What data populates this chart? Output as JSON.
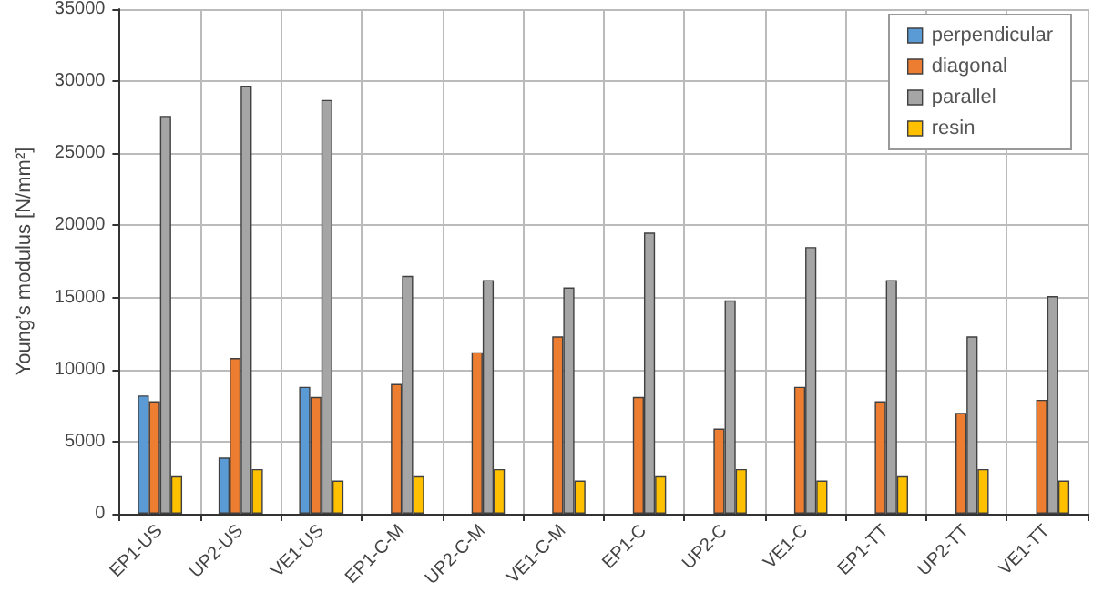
{
  "chart_data": {
    "type": "bar",
    "ylabel": "Young’s modulus [N/mm²]",
    "categories": [
      "EP1-US",
      "UP2-US",
      "VE1-US",
      "EP1-C-M",
      "UP2-C-M",
      "VE1-C-M",
      "EP1-C",
      "UP2-C",
      "VE1-C",
      "EP1-TT",
      "UP2-TT",
      "VE1-TT"
    ],
    "series": [
      {
        "name": "perpendicular",
        "color": "#5b9bd5",
        "values": [
          8200,
          3900,
          8800,
          null,
          null,
          null,
          null,
          null,
          null,
          null,
          null,
          null
        ]
      },
      {
        "name": "diagonal",
        "color": "#ed7d31",
        "values": [
          7800,
          10800,
          8100,
          9000,
          11200,
          12300,
          8100,
          5900,
          8800,
          7800,
          7000,
          7900
        ]
      },
      {
        "name": "parallel",
        "color": "#a5a5a5",
        "values": [
          27600,
          29700,
          28700,
          16500,
          16200,
          15700,
          19500,
          14800,
          18500,
          16200,
          12300,
          15100
        ]
      },
      {
        "name": "resin",
        "color": "#ffc000",
        "values": [
          2600,
          3100,
          2300,
          2600,
          3100,
          2300,
          2600,
          3100,
          2300,
          2600,
          3100,
          2300
        ]
      }
    ],
    "ylim": [
      0,
      35000
    ],
    "yticks": [
      0,
      5000,
      10000,
      15000,
      20000,
      25000,
      30000,
      35000
    ],
    "grid": true,
    "legend": "top right"
  }
}
